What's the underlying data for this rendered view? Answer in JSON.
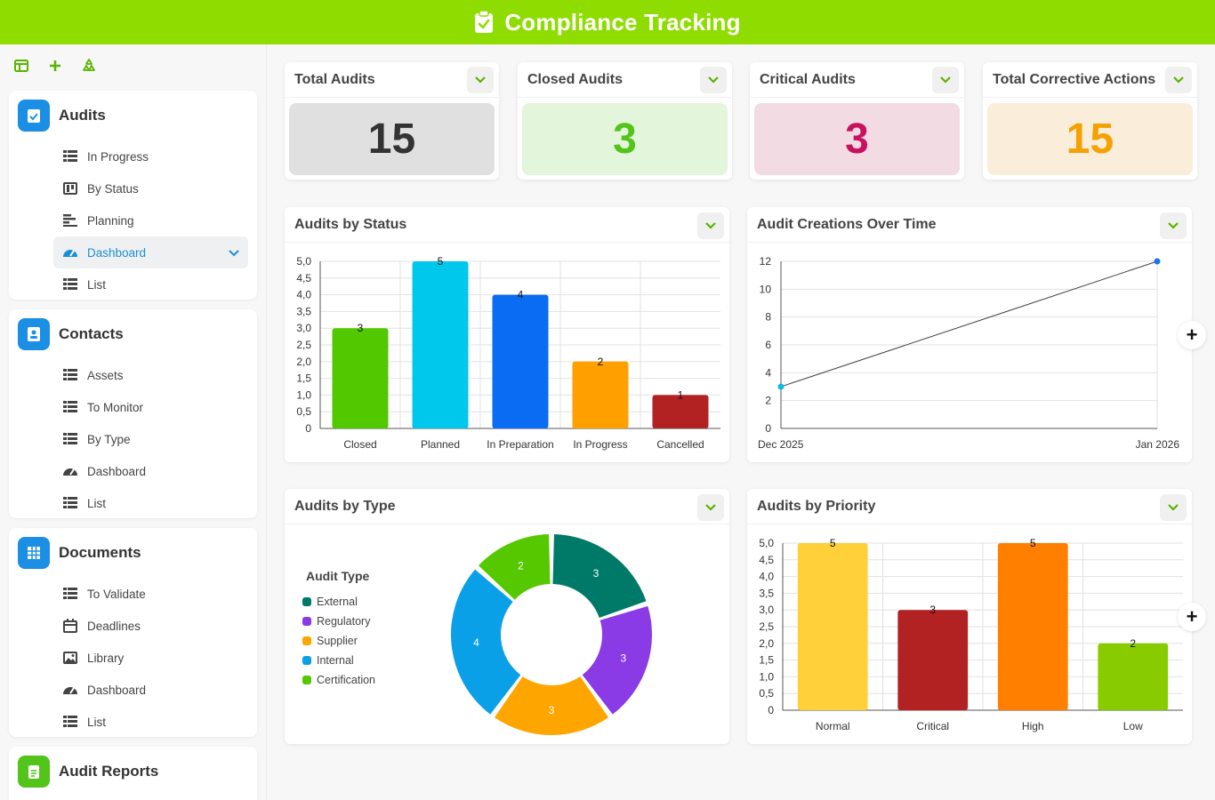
{
  "header": {
    "title": "Compliance Tracking",
    "icon": "clipboard-check-icon",
    "color": "#8fdc00"
  },
  "toolbar": {
    "icons": [
      "layout-icon",
      "plus-icon",
      "recycle-icon"
    ]
  },
  "sidebar": {
    "sections": [
      {
        "title": "Audits",
        "icon": "clipboard-check-icon",
        "color": "#1a8fe3",
        "items": [
          {
            "label": "In Progress",
            "icon": "table-icon"
          },
          {
            "label": "By Status",
            "icon": "kanban-icon"
          },
          {
            "label": "Planning",
            "icon": "gantt-icon"
          },
          {
            "label": "Dashboard",
            "icon": "dashboard-icon",
            "active": true
          },
          {
            "label": "List",
            "icon": "table-icon"
          }
        ]
      },
      {
        "title": "Contacts",
        "icon": "contact-card-icon",
        "color": "#1a8fe3",
        "items": [
          {
            "label": "Assets",
            "icon": "table-icon"
          },
          {
            "label": "To Monitor",
            "icon": "table-icon"
          },
          {
            "label": "By Type",
            "icon": "table-icon"
          },
          {
            "label": "Dashboard",
            "icon": "dashboard-icon"
          },
          {
            "label": "List",
            "icon": "table-icon"
          }
        ]
      },
      {
        "title": "Documents",
        "icon": "grid-icon",
        "color": "#1a8fe3",
        "items": [
          {
            "label": "To Validate",
            "icon": "table-icon"
          },
          {
            "label": "Deadlines",
            "icon": "calendar-icon"
          },
          {
            "label": "Library",
            "icon": "image-icon"
          },
          {
            "label": "Dashboard",
            "icon": "dashboard-icon"
          },
          {
            "label": "List",
            "icon": "table-icon"
          }
        ]
      },
      {
        "title": "Audit Reports",
        "icon": "report-icon",
        "color": "#52c41a",
        "items": []
      }
    ]
  },
  "kpis": [
    {
      "title": "Total Audits",
      "value": "15",
      "bg": "#e0e0e0",
      "fg": "#333333"
    },
    {
      "title": "Closed Audits",
      "value": "3",
      "bg": "#e3f5db",
      "fg": "#52c41a"
    },
    {
      "title": "Critical Audits",
      "value": "3",
      "bg": "#f3dbe4",
      "fg": "#c8125f"
    },
    {
      "title": "Total Corrective Actions",
      "value": "15",
      "bg": "#faeedb",
      "fg": "#f5a100"
    }
  ],
  "panels": {
    "status": "Audits by Status",
    "creations": "Audit Creations Over Time",
    "type": "Audits by Type",
    "priority": "Audits by Priority"
  },
  "chart_data": [
    {
      "type": "bar",
      "title": "Audits by Status",
      "categories": [
        "Closed",
        "Planned",
        "In Preparation",
        "In Progress",
        "Cancelled"
      ],
      "values": [
        3,
        5,
        4,
        2,
        1
      ],
      "colors": [
        "#52c800",
        "#00c8ec",
        "#0a6cf2",
        "#ffa000",
        "#b22222"
      ],
      "ylim": [
        0,
        5
      ],
      "yticks": [
        "0",
        "0,5",
        "1,0",
        "1,5",
        "2,0",
        "2,5",
        "3,0",
        "3,5",
        "4,0",
        "4,5",
        "5,0"
      ],
      "grid": true
    },
    {
      "type": "line",
      "title": "Audit Creations Over Time",
      "x": [
        "Dec 2025",
        "Jan 2026"
      ],
      "values": [
        3,
        12
      ],
      "point_colors": [
        "#12b8e0",
        "#1a73e8"
      ],
      "line_color": "#444444",
      "ylim": [
        0,
        12
      ],
      "yticks": [
        "0",
        "2",
        "4",
        "6",
        "8",
        "10",
        "12"
      ],
      "grid": true
    },
    {
      "type": "pie",
      "title": "Audits by Type",
      "legend_title": "Audit Type",
      "categories": [
        "External",
        "Regulatory",
        "Supplier",
        "Internal",
        "Certification"
      ],
      "values": [
        3,
        3,
        3,
        4,
        2
      ],
      "colors": [
        "#007a68",
        "#8a3be6",
        "#ffa500",
        "#0aa0e8",
        "#55c800"
      ],
      "legend": "left"
    },
    {
      "type": "bar",
      "title": "Audits by Priority",
      "categories": [
        "Normal",
        "Critical",
        "High",
        "Low"
      ],
      "values": [
        5,
        3,
        5,
        2
      ],
      "colors": [
        "#ffd03a",
        "#b22222",
        "#ff7f00",
        "#88cc00"
      ],
      "ylim": [
        0,
        5
      ],
      "yticks": [
        "0",
        "0,5",
        "1,0",
        "1,5",
        "2,0",
        "2,5",
        "3,0",
        "3,5",
        "4,0",
        "4,5",
        "5,0"
      ],
      "grid": true
    }
  ]
}
